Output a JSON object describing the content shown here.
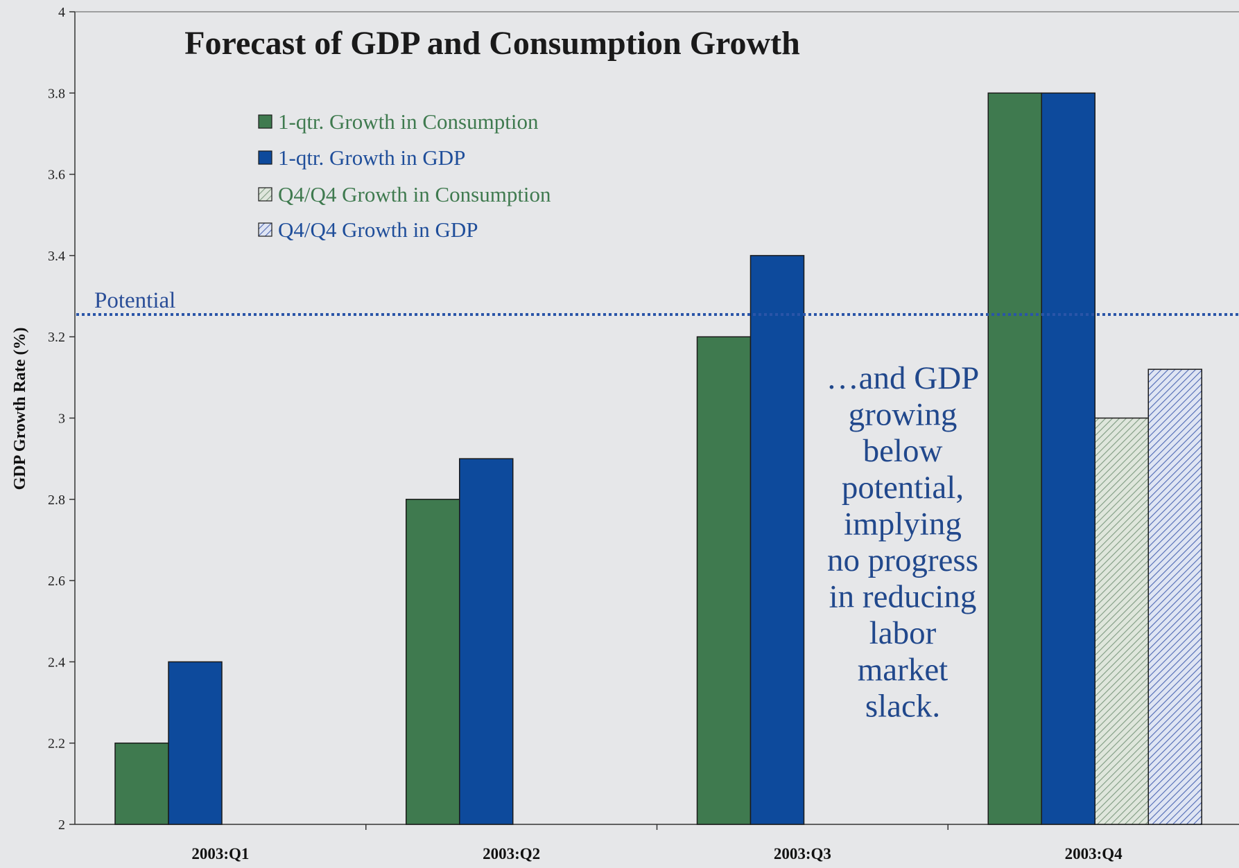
{
  "chart_data": {
    "type": "bar",
    "title": "Forecast of GDP and Consumption Growth",
    "xlabel": "",
    "ylabel": "GDP Growth Rate (%)",
    "ylim": [
      2,
      4
    ],
    "yticks": [
      2,
      2.2,
      2.4,
      2.6,
      2.8,
      3,
      3.2,
      3.4,
      3.6,
      3.8,
      4
    ],
    "categories": [
      "2003:Q1",
      "2003:Q2",
      "2003:Q3",
      "2003:Q4"
    ],
    "series": [
      {
        "name": "1-qtr. Growth in Consumption",
        "values": [
          2.2,
          2.8,
          3.2,
          3.8
        ],
        "color": "#3f7a4f",
        "pattern": "solid"
      },
      {
        "name": "1-qtr. Growth in GDP",
        "values": [
          2.4,
          2.9,
          3.4,
          3.8
        ],
        "color": "#0d4a9c",
        "pattern": "solid"
      },
      {
        "name": "Q4/Q4 Growth in Consumption",
        "values": [
          null,
          null,
          null,
          3.0
        ],
        "color": "#8faa90",
        "pattern": "hatched"
      },
      {
        "name": "Q4/Q4 Growth in GDP",
        "values": [
          null,
          null,
          null,
          3.12
        ],
        "color": "#5f78c0",
        "pattern": "hatched"
      }
    ],
    "legend_text_colors": [
      "#3f7a4f",
      "#1f4e9a",
      "#3f7a4f",
      "#1f4e9a"
    ],
    "legend_position": "top-left",
    "reference_line": {
      "label": "Potential",
      "value": 3.255,
      "color": "#2a55a8",
      "style": "dotted"
    },
    "annotation": {
      "lines": [
        "…and GDP",
        "growing",
        "below",
        "potential,",
        "implying",
        "no progress",
        "in reducing",
        "labor",
        "market",
        "slack."
      ],
      "color": "#21488c"
    },
    "grid": false,
    "background": "#e6e7e9"
  }
}
